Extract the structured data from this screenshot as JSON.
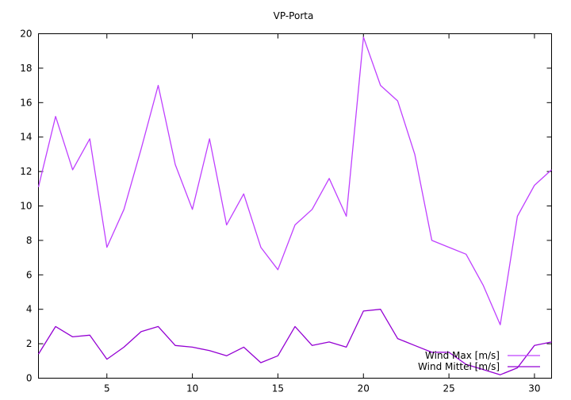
{
  "chart_data": {
    "type": "line",
    "title": "VP-Porta",
    "xlabel": "",
    "ylabel": "",
    "xlim": [
      1,
      31
    ],
    "ylim": [
      0,
      20
    ],
    "x_ticks": [
      5,
      10,
      15,
      20,
      25,
      30
    ],
    "y_ticks": [
      0,
      2,
      4,
      6,
      8,
      10,
      12,
      14,
      16,
      18,
      20
    ],
    "grid": false,
    "legend_position": "bottom-right",
    "x": [
      1,
      2,
      3,
      4,
      5,
      6,
      7,
      8,
      9,
      10,
      11,
      12,
      13,
      14,
      15,
      16,
      17,
      18,
      19,
      20,
      21,
      22,
      23,
      24,
      25,
      26,
      27,
      28,
      29,
      30,
      31
    ],
    "series": [
      {
        "name": "Wind Max [m/s]",
        "color": "#bf40ff",
        "values": [
          11.1,
          15.2,
          12.1,
          13.9,
          7.6,
          9.8,
          13.3,
          17.0,
          12.4,
          9.8,
          13.9,
          8.9,
          10.7,
          7.6,
          6.3,
          8.9,
          9.8,
          11.6,
          9.4,
          19.8,
          17.0,
          16.1,
          13.0,
          8.0,
          7.6,
          7.2,
          5.4,
          3.1,
          9.4,
          11.2,
          12.1
        ]
      },
      {
        "name": "Wind Mittel [m/s]",
        "color": "#9400d3",
        "values": [
          1.4,
          3.0,
          2.4,
          2.5,
          1.1,
          1.8,
          2.7,
          3.0,
          1.9,
          1.8,
          1.6,
          1.3,
          1.8,
          0.9,
          1.3,
          3.0,
          1.9,
          2.1,
          1.8,
          3.9,
          4.0,
          2.3,
          1.9,
          1.5,
          1.5,
          0.8,
          0.5,
          0.2,
          0.6,
          1.9,
          2.1
        ]
      }
    ]
  }
}
